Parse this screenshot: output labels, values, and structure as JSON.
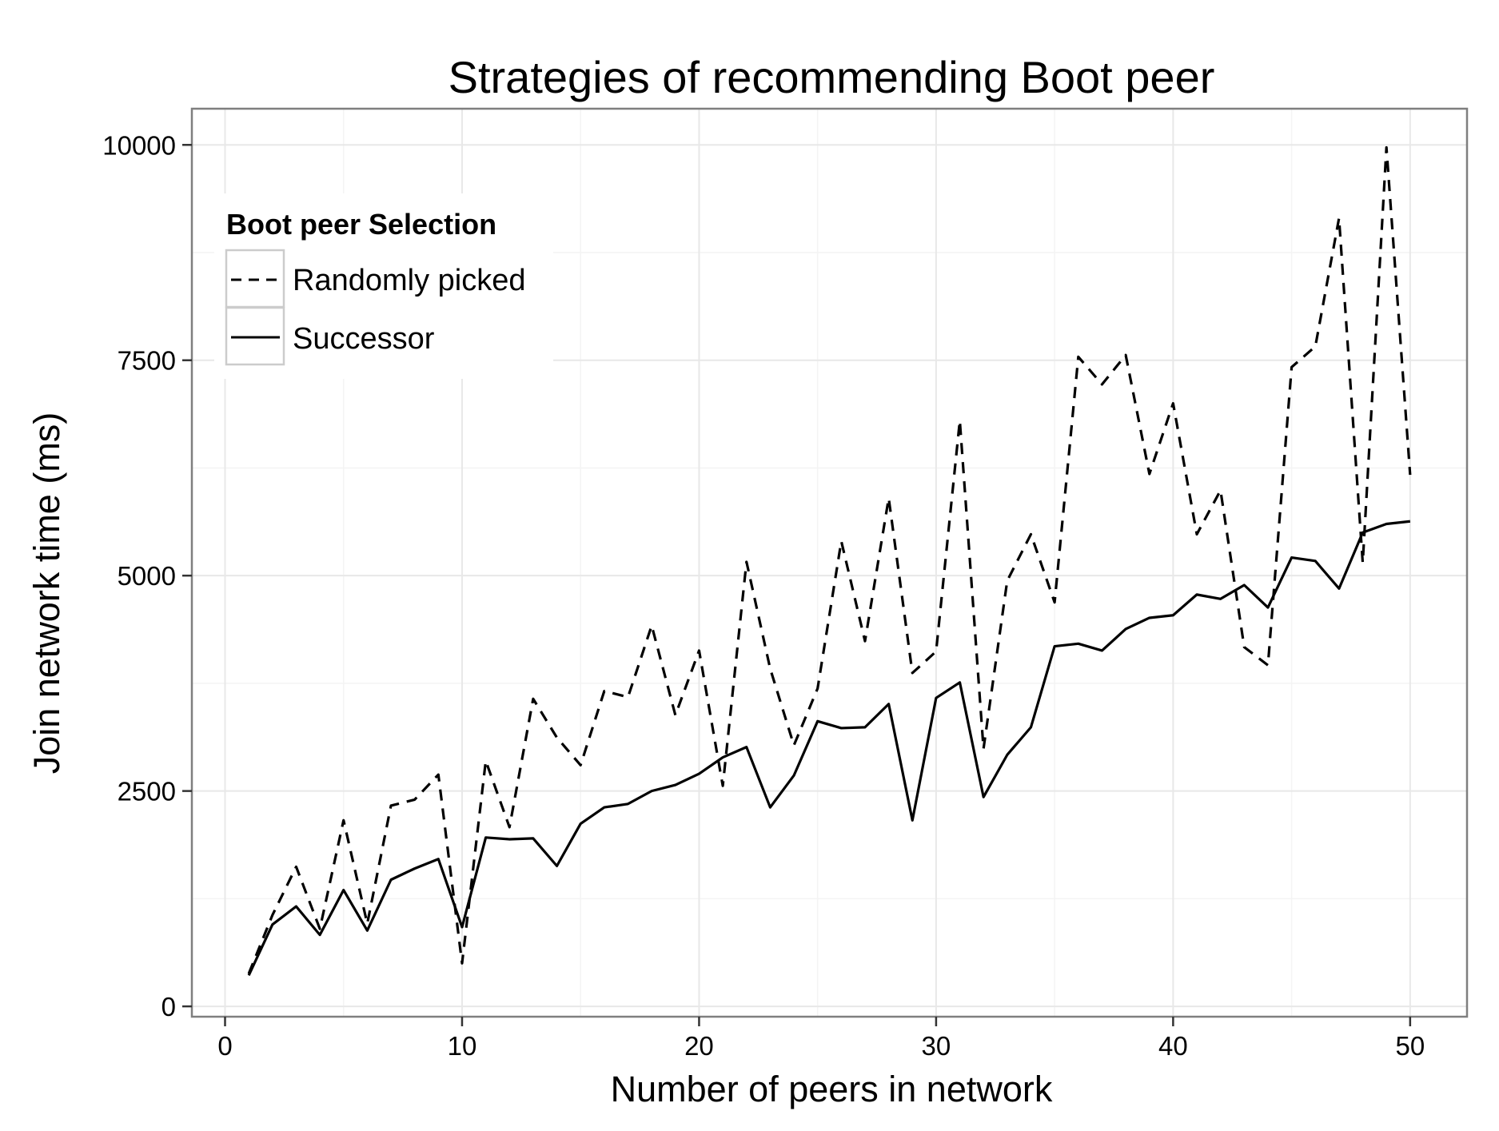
{
  "chart_data": {
    "type": "line",
    "title": "Strategies of recommending Boot peer",
    "xlabel": "Number of peers in network",
    "ylabel": "Join network time (ms)",
    "xlim": [
      -1.4,
      52.4
    ],
    "ylim": [
      -120,
      10420
    ],
    "x_ticks": [
      0,
      10,
      20,
      30,
      40,
      50
    ],
    "x_tick_labels": [
      "0",
      "10",
      "20",
      "30",
      "40",
      "50"
    ],
    "y_ticks": [
      0,
      2500,
      5000,
      7500,
      10000
    ],
    "y_tick_labels": [
      "0",
      "2500",
      "5000",
      "7500",
      "10000"
    ],
    "grid": true,
    "legend": {
      "title": "Boot peer Selection",
      "position": "top-left-inside"
    },
    "x": [
      1,
      2,
      3,
      4,
      5,
      6,
      7,
      8,
      9,
      10,
      11,
      12,
      13,
      14,
      15,
      16,
      17,
      18,
      19,
      20,
      21,
      22,
      23,
      24,
      25,
      26,
      27,
      28,
      29,
      30,
      31,
      32,
      33,
      34,
      35,
      36,
      37,
      38,
      39,
      40,
      41,
      42,
      43,
      44,
      45,
      46,
      47,
      48,
      49,
      50
    ],
    "series": [
      {
        "name": "Randomly picked",
        "line_style": "dashed",
        "color": "#000000",
        "values": [
          380,
          1060,
          1620,
          900,
          2160,
          960,
          2330,
          2400,
          2690,
          500,
          2850,
          2080,
          3570,
          3120,
          2800,
          3660,
          3590,
          4420,
          3380,
          4130,
          2560,
          5160,
          3920,
          3030,
          3690,
          5400,
          4240,
          5900,
          3870,
          4120,
          6800,
          2990,
          4940,
          5480,
          4690,
          7540,
          7220,
          7560,
          6180,
          7000,
          5480,
          5990,
          4170,
          3960,
          7420,
          7660,
          9150,
          5150,
          9970,
          6170
        ]
      },
      {
        "name": "Successor",
        "line_style": "solid",
        "color": "#000000",
        "values": [
          360,
          950,
          1160,
          830,
          1350,
          880,
          1470,
          1600,
          1710,
          920,
          1960,
          1940,
          1950,
          1630,
          2120,
          2310,
          2350,
          2500,
          2570,
          2700,
          2890,
          3010,
          2310,
          2680,
          3310,
          3230,
          3240,
          3510,
          2160,
          3580,
          3760,
          2430,
          2920,
          3240,
          4180,
          4210,
          4130,
          4380,
          4510,
          4540,
          4780,
          4730,
          4890,
          4630,
          5210,
          5170,
          4850,
          5500,
          5600,
          5630
        ]
      }
    ]
  }
}
